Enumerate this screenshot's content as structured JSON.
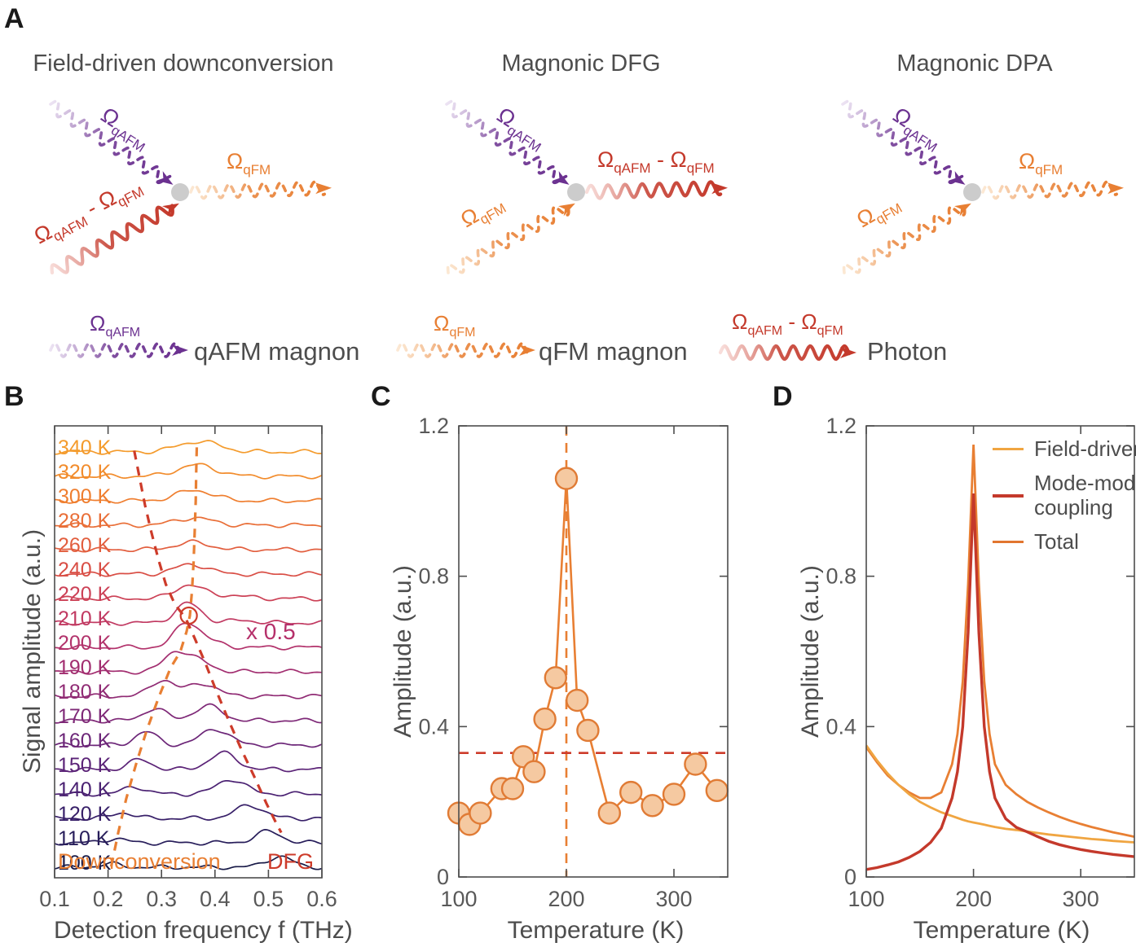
{
  "panels": {
    "a": {
      "label": "A"
    },
    "b": {
      "label": "B"
    },
    "c": {
      "label": "C"
    },
    "d": {
      "label": "D"
    }
  },
  "colors": {
    "axis": "#4d4d4d",
    "tick_text": "#595959",
    "purple": "#6b3190",
    "purple_light": "#dccbe8",
    "red": "#c4392b",
    "red_light": "#f3c3bd",
    "orange": "#e87f33",
    "orange_light": "#f9d6b0",
    "yellow_orange": "#f0a541",
    "dot_gray": "#cccccc",
    "marker_fill": "#f5c9a1",
    "marker_edge": "#e07b35",
    "magenta": "#b5306a",
    "guide_orange": "#e87f33",
    "guide_red": "#cd3b2a"
  },
  "panel_a": {
    "diagrams": [
      {
        "title": "Field-driven downconversion",
        "in_top": {
          "segments": [
            {
              "t": "Ω"
            },
            {
              "t": "qAFM",
              "sub": true
            }
          ],
          "style": "dashed",
          "color_key": "purple"
        },
        "in_bottom": {
          "segments": [
            {
              "t": "Ω"
            },
            {
              "t": "qAFM",
              "sub": true
            },
            {
              "t": " - "
            },
            {
              "t": "Ω"
            },
            {
              "t": "qFM",
              "sub": true
            }
          ],
          "style": "solid",
          "color_key": "red"
        },
        "out": {
          "segments": [
            {
              "t": "Ω"
            },
            {
              "t": "qFM",
              "sub": true
            }
          ],
          "style": "dashed",
          "color_key": "orange"
        }
      },
      {
        "title": "Magnonic DFG",
        "in_top": {
          "segments": [
            {
              "t": "Ω"
            },
            {
              "t": "qAFM",
              "sub": true
            }
          ],
          "style": "dashed",
          "color_key": "purple"
        },
        "in_bottom": {
          "segments": [
            {
              "t": "Ω"
            },
            {
              "t": "qFM",
              "sub": true
            }
          ],
          "style": "dashed",
          "color_key": "orange"
        },
        "out": {
          "segments": [
            {
              "t": "Ω"
            },
            {
              "t": "qAFM",
              "sub": true
            },
            {
              "t": " - "
            },
            {
              "t": "Ω"
            },
            {
              "t": "qFM",
              "sub": true
            }
          ],
          "style": "solid",
          "color_key": "red"
        }
      },
      {
        "title": "Magnonic DPA",
        "in_top": {
          "segments": [
            {
              "t": "Ω"
            },
            {
              "t": "qAFM",
              "sub": true
            }
          ],
          "style": "dashed",
          "color_key": "purple"
        },
        "in_bottom": {
          "segments": [
            {
              "t": "Ω"
            },
            {
              "t": "qFM",
              "sub": true
            }
          ],
          "style": "dashed",
          "color_key": "orange"
        },
        "out": {
          "segments": [
            {
              "t": "Ω"
            },
            {
              "t": "qFM",
              "sub": true
            }
          ],
          "style": "dashed",
          "color_key": "orange"
        }
      }
    ],
    "legend": [
      {
        "segments": [
          {
            "t": "Ω"
          },
          {
            "t": "qAFM",
            "sub": true
          }
        ],
        "style": "dashed",
        "color_key": "purple",
        "text": "qAFM magnon"
      },
      {
        "segments": [
          {
            "t": "Ω"
          },
          {
            "t": "qFM",
            "sub": true
          }
        ],
        "style": "dashed",
        "color_key": "orange",
        "text": "qFM magnon"
      },
      {
        "segments": [
          {
            "t": "Ω"
          },
          {
            "t": "qAFM",
            "sub": true
          },
          {
            "t": " - "
          },
          {
            "t": "Ω"
          },
          {
            "t": "qFM",
            "sub": true
          }
        ],
        "style": "solid",
        "color_key": "red",
        "text": "Photon"
      }
    ]
  },
  "chart_data": [
    {
      "id": "panel-b",
      "type": "line",
      "subtype": "waterfall",
      "xlabel": "Detection frequency f (THz)",
      "ylabel": "Signal amplitude (a.u.)",
      "xlim": [
        0.1,
        0.6
      ],
      "xtick_labels": [
        "0.1",
        "0.2",
        "0.3",
        "0.4",
        "0.5",
        "0.6"
      ],
      "xticks": [
        0.1,
        0.2,
        0.3,
        0.4,
        0.5,
        0.6
      ],
      "annotations": {
        "downconversion": "Downconversion",
        "dfg": "DFG",
        "scale_note": "x 0.5"
      },
      "curves": [
        {
          "label": "340 K",
          "color": "#f49b2c",
          "dc_f": 0.37,
          "dc_a": 13,
          "dc_w": 0.038,
          "dfg_f": 0.25,
          "dfg_a": 0,
          "dfg_w": 0.03
        },
        {
          "label": "320 K",
          "color": "#f28c2c",
          "dc_f": 0.366,
          "dc_a": 14,
          "dc_w": 0.036,
          "dfg_f": 0.26,
          "dfg_a": 0,
          "dfg_w": 0.03
        },
        {
          "label": "300 K",
          "color": "#ef7e2f",
          "dc_f": 0.362,
          "dc_a": 13,
          "dc_w": 0.034,
          "dfg_f": 0.27,
          "dfg_a": 0,
          "dfg_w": 0.03
        },
        {
          "label": "280 K",
          "color": "#e96e37",
          "dc_f": 0.36,
          "dc_a": 9,
          "dc_w": 0.034,
          "dfg_f": 0.28,
          "dfg_a": 0,
          "dfg_w": 0.03
        },
        {
          "label": "260 K",
          "color": "#e25e3e",
          "dc_f": 0.358,
          "dc_a": 9,
          "dc_w": 0.032,
          "dfg_f": 0.3,
          "dfg_a": 0,
          "dfg_w": 0.03
        },
        {
          "label": "240 K",
          "color": "#d94e45",
          "dc_f": 0.356,
          "dc_a": 12,
          "dc_w": 0.03,
          "dfg_f": 0.33,
          "dfg_a": 0,
          "dfg_w": 0.03
        },
        {
          "label": "220 K",
          "color": "#cc4156",
          "dc_f": 0.352,
          "dc_a": 17,
          "dc_w": 0.026,
          "dfg_f": 0.43,
          "dfg_a": 4,
          "dfg_w": 0.028
        },
        {
          "label": "210 K",
          "color": "#c13a62",
          "dc_f": 0.35,
          "dc_a": 24,
          "dc_w": 0.024,
          "dfg_f": 0.45,
          "dfg_a": 3,
          "dfg_w": 0.028
        },
        {
          "label": "200 K",
          "color": "#b2326b",
          "dc_f": 0.346,
          "dc_a": 28,
          "dc_w": 0.022,
          "dfg_f": 0.382,
          "dfg_a": 8,
          "dfg_w": 0.026
        },
        {
          "label": "190 K",
          "color": "#a22e70",
          "dc_f": 0.325,
          "dc_a": 22,
          "dc_w": 0.022,
          "dfg_f": 0.367,
          "dfg_a": 13,
          "dfg_w": 0.026
        },
        {
          "label": "180 K",
          "color": "#902b74",
          "dc_f": 0.302,
          "dc_a": 20,
          "dc_w": 0.022,
          "dfg_f": 0.376,
          "dfg_a": 16,
          "dfg_w": 0.026
        },
        {
          "label": "170 K",
          "color": "#7e2877",
          "dc_f": 0.287,
          "dc_a": 15,
          "dc_w": 0.021,
          "dfg_f": 0.387,
          "dfg_a": 18,
          "dfg_w": 0.026
        },
        {
          "label": "160 K",
          "color": "#6c2678",
          "dc_f": 0.271,
          "dc_a": 16,
          "dc_w": 0.021,
          "dfg_f": 0.4,
          "dfg_a": 20,
          "dfg_w": 0.026
        },
        {
          "label": "150 K",
          "color": "#5b2377",
          "dc_f": 0.26,
          "dc_a": 12,
          "dc_w": 0.021,
          "dfg_f": 0.415,
          "dfg_a": 20,
          "dfg_w": 0.026
        },
        {
          "label": "140 K",
          "color": "#4a2172",
          "dc_f": 0.25,
          "dc_a": 9,
          "dc_w": 0.02,
          "dfg_f": 0.43,
          "dfg_a": 18,
          "dfg_w": 0.026
        },
        {
          "label": "120 K",
          "color": "#371f68",
          "dc_f": 0.228,
          "dc_a": 7,
          "dc_w": 0.02,
          "dfg_f": 0.465,
          "dfg_a": 16,
          "dfg_w": 0.026
        },
        {
          "label": "110 K",
          "color": "#271d5a",
          "dc_f": 0.212,
          "dc_a": 5,
          "dc_w": 0.02,
          "dfg_f": 0.5,
          "dfg_a": 14,
          "dfg_w": 0.024
        },
        {
          "label": "100 K",
          "color": "#181a47",
          "dc_f": 0.203,
          "dc_a": 4,
          "dc_w": 0.02,
          "dfg_f": 0.52,
          "dfg_a": 13,
          "dfg_w": 0.024
        }
      ],
      "guide_downconversion": [
        [
          0.206,
          0.975
        ],
        [
          0.219,
          0.9
        ],
        [
          0.234,
          0.825
        ],
        [
          0.252,
          0.75
        ],
        [
          0.272,
          0.675
        ],
        [
          0.295,
          0.6
        ],
        [
          0.317,
          0.535
        ],
        [
          0.335,
          0.5
        ],
        [
          0.347,
          0.455
        ],
        [
          0.353,
          0.42
        ],
        [
          0.357,
          0.365
        ],
        [
          0.36,
          0.3
        ],
        [
          0.362,
          0.235
        ],
        [
          0.364,
          0.165
        ],
        [
          0.365,
          0.1
        ],
        [
          0.366,
          0.045
        ]
      ],
      "guide_dfg": [
        [
          0.249,
          0.055
        ],
        [
          0.259,
          0.115
        ],
        [
          0.269,
          0.175
        ],
        [
          0.281,
          0.235
        ],
        [
          0.294,
          0.295
        ],
        [
          0.308,
          0.35
        ],
        [
          0.325,
          0.395
        ],
        [
          0.345,
          0.425
        ],
        [
          0.362,
          0.47
        ],
        [
          0.382,
          0.525
        ],
        [
          0.402,
          0.585
        ],
        [
          0.425,
          0.65
        ],
        [
          0.449,
          0.715
        ],
        [
          0.473,
          0.775
        ],
        [
          0.496,
          0.835
        ],
        [
          0.514,
          0.878
        ],
        [
          0.524,
          0.9
        ]
      ],
      "circle_annotation": {
        "f": 0.351,
        "curve_label": "210 K"
      }
    },
    {
      "id": "panel-c",
      "type": "scatter",
      "xlabel": "Temperature (K)",
      "ylabel": "Amplitude (a.u.)",
      "xlim": [
        100,
        350
      ],
      "ylim": [
        0,
        1.2
      ],
      "xticks": [
        100,
        200,
        300
      ],
      "xtick_labels": [
        "100",
        "200",
        "300"
      ],
      "yticks": [
        0,
        0.4,
        0.8,
        1.2
      ],
      "ytick_labels": [
        "0",
        "0.4",
        "0.8",
        "1.2"
      ],
      "x": [
        100,
        110,
        120,
        140,
        150,
        160,
        170,
        180,
        190,
        200,
        210,
        220,
        240,
        260,
        280,
        300,
        320,
        340
      ],
      "y": [
        0.17,
        0.14,
        0.17,
        0.235,
        0.235,
        0.32,
        0.28,
        0.42,
        0.53,
        1.06,
        0.47,
        0.39,
        0.17,
        0.225,
        0.19,
        0.22,
        0.3,
        0.23
      ],
      "vline_x": 200,
      "hline_y": 0.33
    },
    {
      "id": "panel-d",
      "type": "line",
      "xlabel": "Temperature (K)",
      "ylabel": "Amplitude (a.u.)",
      "xlim": [
        100,
        350
      ],
      "ylim": [
        0,
        1.2
      ],
      "xticks": [
        100,
        200,
        300
      ],
      "xtick_labels": [
        "100",
        "200",
        "300"
      ],
      "yticks": [
        0,
        0.4,
        0.8,
        1.2
      ],
      "ytick_labels": [
        "0",
        "0.4",
        "0.8",
        "1.2"
      ],
      "legend_position": "top-right",
      "x": [
        100,
        110,
        120,
        130,
        140,
        150,
        160,
        170,
        180,
        185,
        190,
        195,
        200,
        205,
        210,
        215,
        220,
        230,
        240,
        250,
        260,
        270,
        280,
        290,
        300,
        310,
        320,
        330,
        340,
        350
      ],
      "series": [
        {
          "name": "Field-driven",
          "color_key": "yellow_orange",
          "values": [
            0.35,
            0.31,
            0.275,
            0.245,
            0.22,
            0.2,
            0.185,
            0.172,
            0.162,
            0.157,
            0.152,
            0.148,
            0.145,
            0.142,
            0.139,
            0.136,
            0.133,
            0.128,
            0.125,
            0.121,
            0.117,
            0.113,
            0.11,
            0.107,
            0.104,
            0.101,
            0.099,
            0.096,
            0.094,
            0.092
          ],
          "swatch_thickness": 3
        },
        {
          "name": "Mode-mode coupling",
          "color_key": "red",
          "values": [
            0.02,
            0.025,
            0.032,
            0.04,
            0.052,
            0.068,
            0.092,
            0.13,
            0.21,
            0.28,
            0.4,
            0.65,
            1.02,
            0.65,
            0.4,
            0.28,
            0.21,
            0.155,
            0.132,
            0.12,
            0.107,
            0.095,
            0.086,
            0.079,
            0.073,
            0.068,
            0.064,
            0.06,
            0.057,
            0.054
          ],
          "swatch_thickness": 4
        },
        {
          "name": "Total",
          "color_key": "orange",
          "values": [
            0.345,
            0.305,
            0.27,
            0.245,
            0.225,
            0.21,
            0.21,
            0.225,
            0.3,
            0.38,
            0.52,
            0.78,
            1.15,
            0.78,
            0.52,
            0.38,
            0.3,
            0.245,
            0.22,
            0.2,
            0.185,
            0.172,
            0.16,
            0.15,
            0.141,
            0.133,
            0.126,
            0.119,
            0.113,
            0.107
          ],
          "swatch_thickness": 3
        }
      ]
    }
  ]
}
